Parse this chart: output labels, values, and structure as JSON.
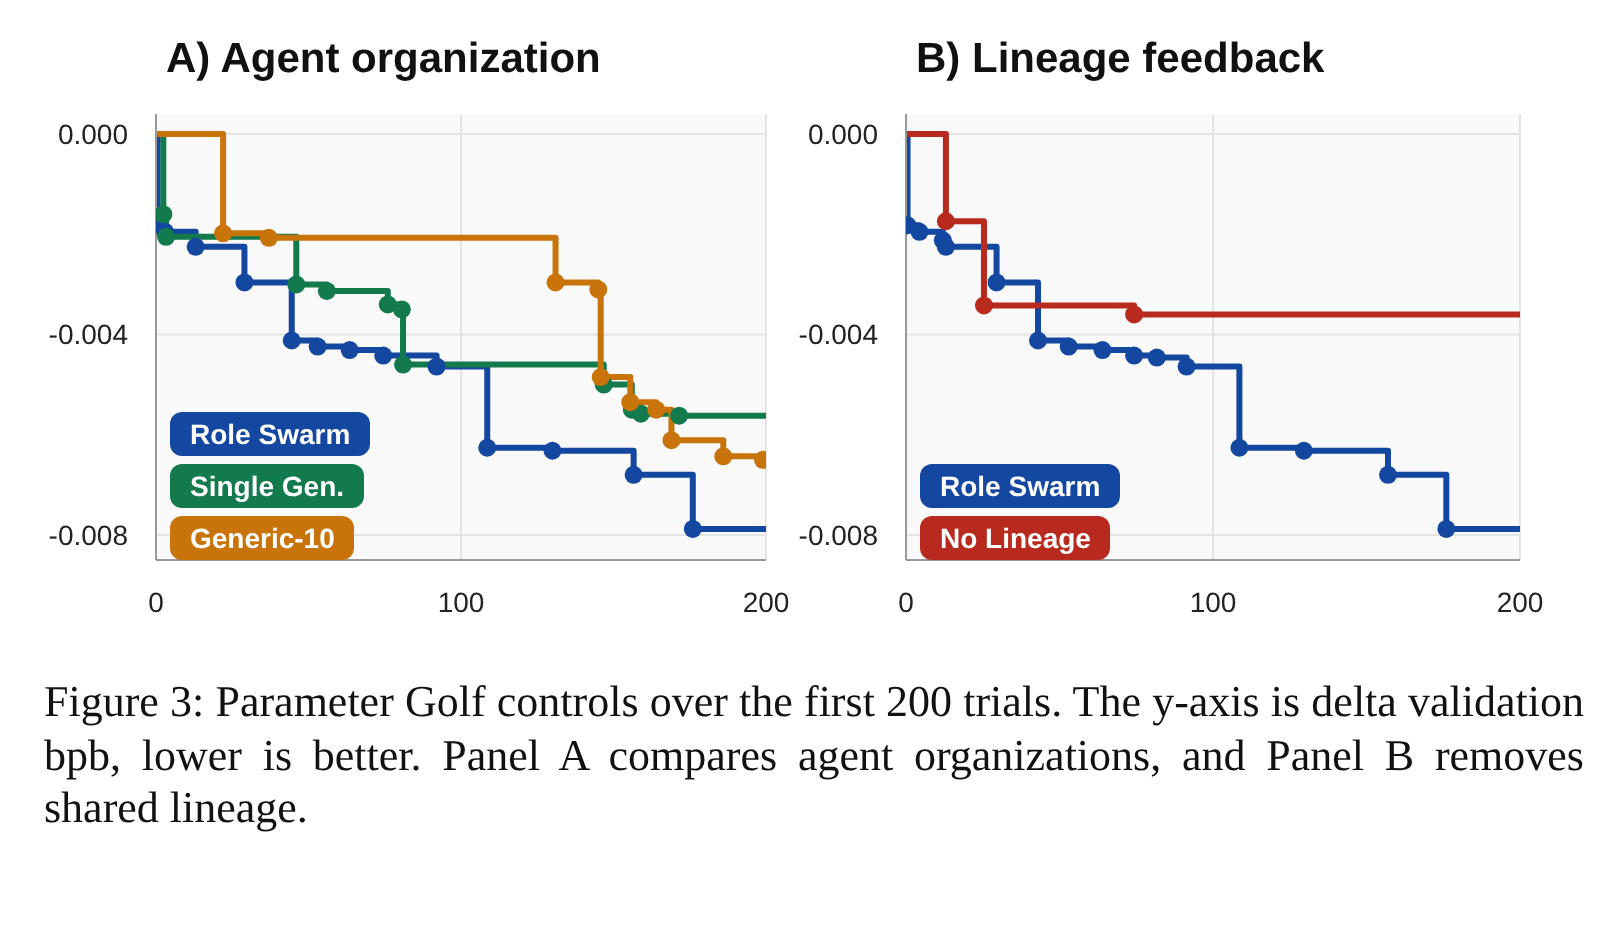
{
  "chart_data": [
    {
      "type": "step",
      "title": "A) Agent organization",
      "xlim": [
        0,
        200
      ],
      "xticks": [
        0,
        100,
        200
      ],
      "ylim": [
        -0.0085,
        0.0004
      ],
      "yticks": [
        {
          "value": 0,
          "label": "0.000"
        },
        {
          "value": -0.004,
          "label": "-0.004"
        },
        {
          "value": -0.008,
          "label": "-0.008"
        }
      ],
      "grid": true,
      "legend": "bottom left",
      "marker": "circle",
      "annotations": [
        "Figure 3: Parameter Golf controls over the first 200 trials. The y-axis is delta validation bpb, lower is better. Panel A compares agent organizations, and Panel B removes shared lineage."
      ],
      "series": [
        {
          "name": "Role Swarm",
          "color": "#1447a0",
          "x": [
            0,
            0.5,
            3,
            13,
            29,
            44.5,
            53,
            63.5,
            74.5,
            92,
            108.6,
            130,
            156.6,
            176,
            200
          ],
          "values": [
            0,
            -0.0018,
            -0.00195,
            -0.00225,
            -0.00296,
            -0.00412,
            -0.00424,
            -0.00431,
            -0.00442,
            -0.00464,
            -0.00626,
            -0.00632,
            -0.0068,
            -0.00788,
            -0.00788
          ]
        },
        {
          "name": "Single Gen.",
          "color": "#127a4c",
          "x": [
            0,
            2.4,
            3.3,
            46,
            56,
            76,
            80.6,
            81,
            146.8,
            156,
            159,
            171.5,
            200
          ],
          "values": [
            0,
            -0.0016,
            -0.00205,
            -0.003,
            -0.00313,
            -0.0034,
            -0.0035,
            -0.0046,
            -0.005,
            -0.0055,
            -0.00558,
            -0.00562,
            -0.00562
          ]
        },
        {
          "name": "Generic-10",
          "color": "#c8740a",
          "x": [
            0,
            22,
            37,
            131,
            145,
            145.8,
            155.5,
            164,
            169,
            186,
            199,
            200
          ],
          "values": [
            0,
            -0.00198,
            -0.00207,
            -0.00296,
            -0.0031,
            -0.00485,
            -0.00535,
            -0.0055,
            -0.00611,
            -0.00643,
            -0.0065,
            -0.0065
          ]
        }
      ]
    },
    {
      "type": "step",
      "title": "B) Lineage feedback",
      "xlim": [
        0,
        200
      ],
      "xticks": [
        0,
        100,
        200
      ],
      "ylim": [
        -0.0085,
        0.0004
      ],
      "yticks": [
        {
          "value": 0,
          "label": "0.000"
        },
        {
          "value": -0.004,
          "label": "-0.004"
        },
        {
          "value": -0.008,
          "label": "-0.008"
        }
      ],
      "grid": true,
      "legend": "bottom left",
      "marker": "circle",
      "series": [
        {
          "name": "Role Swarm",
          "color": "#1447a0",
          "x": [
            0,
            0.5,
            4.4,
            12,
            13,
            29.5,
            43,
            53,
            64,
            74.3,
            81.7,
            91.4,
            108.6,
            129.6,
            157,
            176,
            200
          ],
          "values": [
            0,
            -0.00182,
            -0.00195,
            -0.00212,
            -0.00225,
            -0.00296,
            -0.00412,
            -0.00424,
            -0.00431,
            -0.00442,
            -0.00446,
            -0.00464,
            -0.00626,
            -0.00632,
            -0.0068,
            -0.00788,
            -0.00788
          ]
        },
        {
          "name": "No Lineage",
          "color": "#b82a1e",
          "x": [
            0,
            13,
            25.4,
            74.3,
            200
          ],
          "values": [
            0,
            -0.00174,
            -0.00342,
            -0.0036,
            -0.0036
          ]
        }
      ]
    }
  ]
}
